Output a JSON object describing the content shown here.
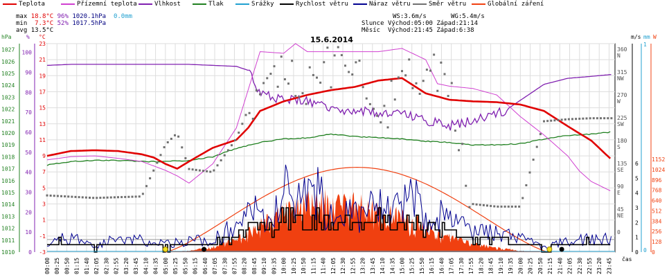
{
  "legend": [
    {
      "label": "Teplota",
      "color": "#e00000"
    },
    {
      "label": "Přízemní teplota",
      "color": "#d040d0"
    },
    {
      "label": "Vlhkost",
      "color": "#8020b0"
    },
    {
      "label": "Tlak",
      "color": "#208020"
    },
    {
      "label": "Srážky",
      "color": "#20a0d0"
    },
    {
      "label": "Rychlost větru",
      "color": "#000000"
    },
    {
      "label": "Náraz větru",
      "color": "#000090"
    },
    {
      "label": "Směr větru",
      "color": "#707070"
    },
    {
      "label": "Globální záření",
      "color": "#f04010"
    }
  ],
  "stats": {
    "max_label": "max",
    "max_temp": "18.8°C",
    "max_hum": "96%",
    "max_press": "1020.1hPa",
    "max_rain": "0.0mm",
    "min_label": "min",
    "min_temp": "7.3°C",
    "min_hum": "52%",
    "min_press": "1017.5hPa",
    "avg_label": "avg",
    "avg_temp": "13.5°C"
  },
  "wind_info": {
    "ws": "WS:3.6m/s",
    "wg": "WG:5.4m/s",
    "sun_label": "Slunce",
    "sun_rise": "Východ:05:00",
    "sun_set": "Západ:21:14",
    "moon_label": "Měsíc",
    "moon_rise": "Východ:21:45",
    "moon_set": "Západ:6:38"
  },
  "chart_data": {
    "type": "line",
    "title": "15.6.2014",
    "xlabel": "čas",
    "x_ticks": [
      "00:00",
      "00:25",
      "00:50",
      "01:15",
      "01:40",
      "02:05",
      "02:30",
      "02:55",
      "03:20",
      "03:45",
      "04:10",
      "04:35",
      "05:00",
      "05:25",
      "05:50",
      "06:15",
      "06:40",
      "07:05",
      "07:30",
      "07:55",
      "08:20",
      "08:45",
      "09:10",
      "09:35",
      "10:00",
      "10:25",
      "10:50",
      "11:15",
      "11:40",
      "12:05",
      "12:30",
      "12:55",
      "13:20",
      "13:45",
      "14:10",
      "14:35",
      "15:00",
      "15:25",
      "15:50",
      "16:15",
      "16:40",
      "17:05",
      "17:30",
      "17:55",
      "18:20",
      "18:45",
      "19:10",
      "19:35",
      "20:00",
      "20:25",
      "20:50",
      "21:15",
      "21:40",
      "22:05",
      "22:30",
      "22:55",
      "23:20",
      "23:45"
    ],
    "axes": {
      "press": {
        "label": "hPa",
        "ticks": [
          "1027",
          "1026",
          "1025",
          "1024",
          "1023",
          "1022",
          "1021",
          "1020",
          "1019",
          "1018",
          "1017",
          "1016",
          "1015",
          "1014",
          "1013",
          "1012",
          "1011",
          "1010"
        ]
      },
      "hum": {
        "label": "%",
        "ticks": [
          "100",
          "90",
          "80",
          "70",
          "60",
          "50",
          "40",
          "30",
          "20",
          "10",
          "0"
        ]
      },
      "temp": {
        "label": "°C",
        "ticks": [
          "23",
          "21",
          "19",
          "17",
          "15",
          "13",
          "11",
          "9",
          "7",
          "5",
          "3",
          "1",
          "-1",
          "-3"
        ]
      },
      "dir": {
        "label": "m/s",
        "ticks": [
          "360",
          "N",
          "315",
          "NW",
          "270",
          "W",
          "225",
          "SW",
          "180",
          "S",
          "135",
          "SE",
          "90",
          "E",
          "45",
          "NE",
          "0"
        ]
      },
      "speed": {
        "ticks": [
          "6",
          "5",
          "4",
          "3",
          "2",
          "1",
          "0"
        ]
      },
      "rain": {
        "label": "mm",
        "ticks": [
          "1",
          "0"
        ]
      },
      "rad": {
        "label": "W",
        "ticks": [
          "1152",
          "1024",
          "896",
          "768",
          "640",
          "512",
          "384",
          "256",
          "128",
          "0"
        ]
      }
    },
    "series": [
      {
        "name": "Teplota",
        "x": [
          0,
          1,
          2,
          3,
          4,
          4.5,
          5,
          5.5,
          6,
          7,
          8,
          8.5,
          9,
          10,
          11,
          12,
          13,
          14,
          15,
          16,
          17,
          18,
          19,
          20,
          21,
          22,
          23,
          23.9
        ],
        "y": [
          9,
          9.6,
          9.7,
          9.6,
          9.2,
          8.8,
          8,
          7.4,
          8.3,
          10,
          11,
          12.5,
          14.6,
          15.8,
          16.6,
          17.2,
          17.6,
          18.4,
          18.7,
          16.8,
          16,
          15.8,
          15.7,
          15.4,
          14.6,
          12.7,
          10.9,
          8.4
        ]
      },
      {
        "name": "Přízemní teplota",
        "x": [
          0,
          1,
          2,
          3,
          4,
          5,
          5.5,
          6,
          7,
          8,
          9,
          10,
          10.5,
          11,
          12,
          13,
          14,
          15,
          16,
          16.5,
          17,
          18,
          19,
          20,
          21,
          22,
          22.5,
          23,
          23.9
        ],
        "y": [
          8.5,
          8.9,
          9,
          8.7,
          8.3,
          7.2,
          6.5,
          5.6,
          8,
          12.5,
          22,
          21.8,
          23,
          22,
          22,
          22,
          22,
          22.4,
          21,
          18,
          17.7,
          17.4,
          16.6,
          13.9,
          11.6,
          9,
          7.1,
          5.8,
          4.5
        ]
      },
      {
        "name": "Vlhkost",
        "x": [
          0,
          1,
          2,
          3,
          4,
          5,
          6,
          7,
          8,
          8.5,
          9,
          10,
          11,
          12,
          13,
          14,
          15,
          16,
          17,
          18,
          19,
          19.5,
          20,
          21,
          22,
          23,
          23.9
        ],
        "y": [
          93.5,
          94,
          94,
          94,
          94,
          94,
          94,
          93.5,
          93,
          91,
          80,
          76,
          76,
          72,
          71,
          70,
          70,
          66,
          63,
          66,
          69,
          72,
          76,
          84,
          87,
          88,
          89
        ]
      },
      {
        "name": "Tlak",
        "x": [
          0,
          1,
          2,
          3,
          4,
          5,
          6,
          7,
          8,
          9,
          10,
          11,
          12,
          13,
          14,
          15,
          16,
          17,
          18,
          19,
          20,
          21,
          22,
          23,
          23.9
        ],
        "y": [
          1017.3,
          1017.6,
          1017.7,
          1017.7,
          1017.6,
          1017.6,
          1017.7,
          1018,
          1018.7,
          1019.2,
          1019.5,
          1019.6,
          1019.9,
          1019.7,
          1019.6,
          1019.5,
          1019.3,
          1019.2,
          1019,
          1019,
          1019.1,
          1019.5,
          1019.8,
          1019.9,
          1020.1
        ]
      },
      {
        "name": "Rychlost větru",
        "x": [
          0,
          1,
          2,
          3,
          4,
          5,
          6,
          7,
          8,
          8.5,
          9,
          9.5,
          10,
          10.5,
          11,
          11.5,
          12,
          12.5,
          13,
          13.5,
          14,
          14.5,
          15,
          15.5,
          16,
          16.5,
          17,
          18,
          19,
          20,
          21,
          22,
          23,
          23.9
        ],
        "y": [
          0.6,
          0.7,
          0.3,
          0.6,
          0.5,
          0.3,
          0.5,
          0.6,
          1.2,
          1.6,
          2.1,
          1.7,
          2.8,
          2.4,
          2,
          2.6,
          1.8,
          2,
          2.3,
          1.6,
          2.5,
          1.9,
          1.7,
          2.6,
          1.6,
          1.8,
          1.4,
          1,
          0.8,
          0.6,
          0.2,
          0.5,
          0.7,
          0.6
        ]
      },
      {
        "name": "Náraz větru",
        "x": [
          0,
          1,
          2,
          3,
          4,
          5,
          6,
          7,
          8,
          8.5,
          9,
          9.5,
          10,
          10.5,
          11,
          11.5,
          12,
          12.5,
          13,
          13.5,
          14,
          14.5,
          15,
          15.5,
          16,
          16.5,
          17,
          18,
          19,
          20,
          21,
          22,
          23,
          23.9
        ],
        "y": [
          1,
          1.1,
          0.6,
          1,
          0.9,
          0.6,
          0.9,
          1,
          2,
          3,
          3.5,
          2.8,
          5.1,
          3.5,
          4.2,
          4.5,
          2.8,
          4,
          3.4,
          2.7,
          4.6,
          2.9,
          3.5,
          4.9,
          2.4,
          2.8,
          2.5,
          1.6,
          1.4,
          1.1,
          0.4,
          0.9,
          1.1,
          1
        ]
      },
      {
        "name": "Směr větru",
        "x": [
          0,
          2,
          4,
          5,
          5.5,
          6,
          7,
          8,
          9,
          10,
          11,
          12,
          13,
          14,
          15,
          16,
          17,
          18,
          19,
          20,
          21,
          22,
          23,
          23.9
        ],
        "y": [
          72,
          67,
          70,
          172,
          195,
          124,
          118,
          184,
          300,
          315,
          292,
          325,
          333,
          205,
          295,
          320,
          305,
          55,
          50,
          50,
          218,
          222,
          224,
          224
        ]
      },
      {
        "name": "Globální záření",
        "x": [
          5,
          6,
          7,
          8,
          9,
          10,
          11,
          12,
          13,
          14,
          15,
          16,
          17,
          18,
          19,
          20,
          21
        ],
        "y": [
          0,
          20,
          80,
          200,
          420,
          620,
          760,
          820,
          760,
          640,
          560,
          400,
          230,
          130,
          70,
          20,
          0
        ]
      },
      {
        "name": "Srážky",
        "x": [
          0,
          23.9
        ],
        "y": [
          0,
          0
        ]
      }
    ]
  }
}
